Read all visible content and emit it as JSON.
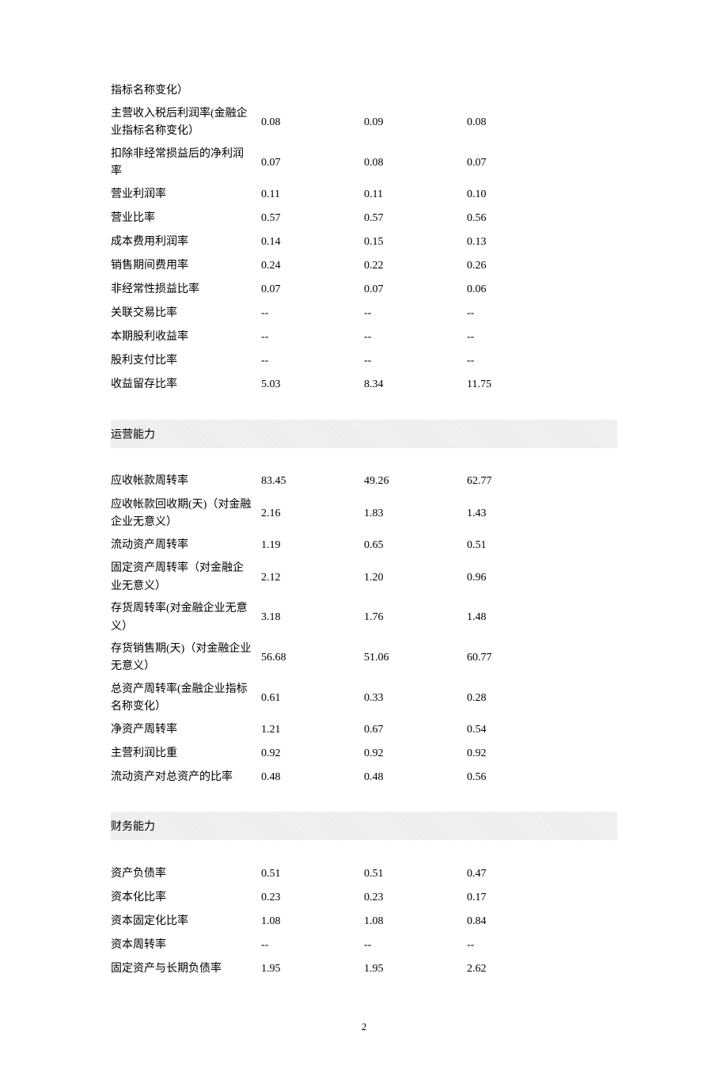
{
  "page_number": "2",
  "section1": {
    "rows": [
      {
        "label": "指标名称变化）",
        "v1": "",
        "v2": "",
        "v3": ""
      },
      {
        "label": "主营收入税后利润率(金融企业指标名称变化）",
        "v1": "0.08",
        "v2": "0.09",
        "v3": "0.08"
      },
      {
        "label": "扣除非经常损益后的净利润率",
        "v1": "0.07",
        "v2": "0.08",
        "v3": "0.07"
      },
      {
        "label": "营业利润率",
        "v1": "0.11",
        "v2": "0.11",
        "v3": "0.10"
      },
      {
        "label": "营业比率",
        "v1": "0.57",
        "v2": "0.57",
        "v3": "0.56"
      },
      {
        "label": "成本费用利润率",
        "v1": "0.14",
        "v2": "0.15",
        "v3": "0.13"
      },
      {
        "label": "销售期间费用率",
        "v1": "0.24",
        "v2": "0.22",
        "v3": "0.26"
      },
      {
        "label": "非经常性损益比率",
        "v1": "0.07",
        "v2": "0.07",
        "v3": "0.06"
      },
      {
        "label": "关联交易比率",
        "v1": "--",
        "v2": "--",
        "v3": "--"
      },
      {
        "label": "本期股利收益率",
        "v1": "--",
        "v2": "--",
        "v3": "--"
      },
      {
        "label": "股利支付比率",
        "v1": "--",
        "v2": "--",
        "v3": "--"
      },
      {
        "label": "收益留存比率",
        "v1": "5.03",
        "v2": "8.34",
        "v3": "11.75"
      }
    ]
  },
  "section2": {
    "title": "运营能力",
    "rows": [
      {
        "label": "应收帐款周转率",
        "v1": "83.45",
        "v2": "49.26",
        "v3": "62.77"
      },
      {
        "label": "应收帐款回收期(天)（对金融企业无意义）",
        "v1": "2.16",
        "v2": "1.83",
        "v3": "1.43"
      },
      {
        "label": "流动资产周转率",
        "v1": "1.19",
        "v2": "0.65",
        "v3": "0.51"
      },
      {
        "label": "固定资产周转率（对金融企业无意义）",
        "v1": "2.12",
        "v2": "1.20",
        "v3": "0.96"
      },
      {
        "label": "存货周转率(对金融企业无意义）",
        "v1": "3.18",
        "v2": "1.76",
        "v3": "1.48"
      },
      {
        "label": "存货销售期(天)（对金融企业无意义）",
        "v1": "56.68",
        "v2": "51.06",
        "v3": "60.77"
      },
      {
        "label": "总资产周转率(金融企业指标名称变化）",
        "v1": "0.61",
        "v2": "0.33",
        "v3": "0.28"
      },
      {
        "label": "净资产周转率",
        "v1": "1.21",
        "v2": "0.67",
        "v3": "0.54"
      },
      {
        "label": "主营利润比重",
        "v1": "0.92",
        "v2": "0.92",
        "v3": "0.92"
      },
      {
        "label": "流动资产对总资产的比率",
        "v1": "0.48",
        "v2": "0.48",
        "v3": "0.56"
      }
    ]
  },
  "section3": {
    "title": "财务能力",
    "rows": [
      {
        "label": "资产负债率",
        "v1": "0.51",
        "v2": "0.51",
        "v3": "0.47"
      },
      {
        "label": "资本化比率",
        "v1": "0.23",
        "v2": "0.23",
        "v3": "0.17"
      },
      {
        "label": "资本固定化比率",
        "v1": "1.08",
        "v2": "1.08",
        "v3": "0.84"
      },
      {
        "label": "资本周转率",
        "v1": "--",
        "v2": "--",
        "v3": "--"
      },
      {
        "label": "固定资产与长期负债率",
        "v1": "1.95",
        "v2": "1.95",
        "v3": "2.62"
      }
    ]
  }
}
